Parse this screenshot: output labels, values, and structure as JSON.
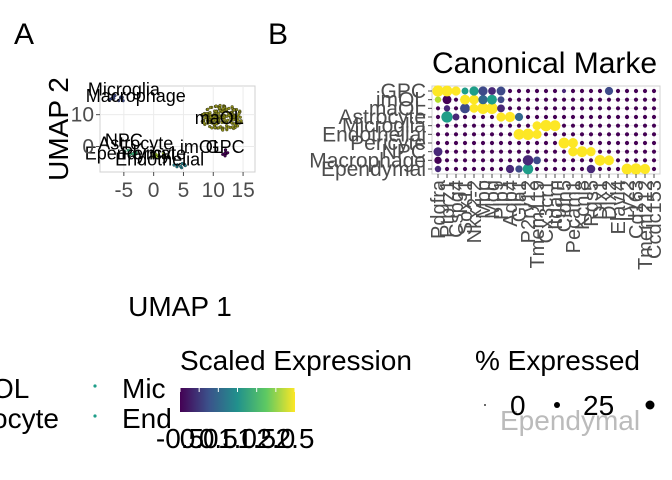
{
  "panel_labels": {
    "a": "A",
    "b": "B"
  },
  "colors": {
    "viridis": [
      "#440154",
      "#482878",
      "#3e4a89",
      "#31688e",
      "#26828e",
      "#1f9e89",
      "#35b779",
      "#6dcd59",
      "#b4de2c",
      "#fde725"
    ],
    "umap_cluster_fill": "#8f8f1c",
    "axis_text": "#4d4d4d",
    "grid": "#ebebeb"
  },
  "chart_data": [
    {
      "type": "scatter",
      "panel": "A",
      "xlabel": "UMAP 1",
      "ylabel": "UMAP 2",
      "xlim": [
        -9,
        17
      ],
      "ylim": [
        -8,
        19
      ],
      "x_ticks": [
        -5,
        0,
        5,
        10,
        15
      ],
      "y_ticks": [
        0,
        10
      ],
      "x_tick_labels": [
        "-5",
        "0",
        "5",
        "10",
        "15"
      ],
      "y_tick_labels": [
        "0",
        "10"
      ],
      "cluster_labels": [
        {
          "text": "Microglia",
          "x": -5,
          "y": 16
        },
        {
          "text": "Macrophage",
          "x": -3,
          "y": 14
        },
        {
          "text": "maOL",
          "x": 11,
          "y": 7
        },
        {
          "text": "NPC",
          "x": -5,
          "y": 0
        },
        {
          "text": "Astrocyte",
          "x": -3,
          "y": -1
        },
        {
          "text": "imOL",
          "x": 8,
          "y": -2
        },
        {
          "text": "GPC",
          "x": 12,
          "y": -2
        },
        {
          "text": "Ependymal",
          "x": -4,
          "y": -4
        },
        {
          "text": "Pericyte",
          "x": 0,
          "y": -4
        },
        {
          "text": "Endothelial",
          "x": 1,
          "y": -6
        }
      ],
      "clusters": [
        {
          "cx": 11.5,
          "cy": 9,
          "rx": 3.5,
          "ry": 4,
          "n": 180
        },
        {
          "cx": -6,
          "cy": 15,
          "rx": 1.4,
          "ry": 1.2,
          "n": 14
        },
        {
          "cx": 4.5,
          "cy": -6,
          "rx": 1.2,
          "ry": 0.8,
          "n": 10
        },
        {
          "cx": -4,
          "cy": -2,
          "rx": 1.2,
          "ry": 1.4,
          "n": 10
        },
        {
          "cx": 1,
          "cy": -3,
          "rx": 1.5,
          "ry": 1,
          "n": 10
        },
        {
          "cx": 12,
          "cy": -2,
          "rx": 1,
          "ry": 1,
          "n": 8
        }
      ]
    },
    {
      "type": "dot",
      "panel": "B",
      "title": "Canonical Marke",
      "rows": [
        "Ependymal",
        "Macrophage",
        "NPC",
        "Pericyte",
        "Endothelial",
        "Microglia",
        "Astrocyte",
        "maOL",
        "imOL",
        "GPC"
      ],
      "row_labels_visible": [
        "GPC",
        "imOL",
        "maOL",
        "Astrocyte",
        "Endothelial",
        "Microglia",
        "Pericyte",
        "NPC",
        "Macrophage",
        "Ependymal"
      ],
      "genes": [
        "Pdgfra",
        "Ptprz1",
        "Cspg4",
        "Sox11",
        "Nkx2-2",
        "Mbp",
        "Mog",
        "Plp1",
        "Aqp4",
        "Gja1",
        "P2ry12",
        "Tmem119",
        "Cx3cr1",
        "Itgam",
        "Cldn5",
        "Pecam1",
        "Kcnj8",
        "Rgs5",
        "Dlx1",
        "Dlx2",
        "Elavl4",
        "Lyz2",
        "Cd163",
        "Tmem212",
        "Ccdc153"
      ],
      "x_tick_labels": [
        "Pdgfra",
        "Ptprz1",
        "Cspg4",
        "Sox11",
        "Nkx2-2",
        "Mbp",
        "Mog",
        "Plp1",
        "Aqp4",
        "Gja1",
        "P2ry12",
        "Tmem119",
        "Cx3cr1",
        "Itgam",
        "Cldn5",
        "Pecam1",
        "Kcnj8",
        "Rgs5",
        "Dlx1",
        "Dlx2",
        "Elavl4",
        "Lyz2",
        "Cd163",
        "Tmem212",
        "Ccdc153"
      ],
      "dots": [
        {
          "row": "GPC",
          "gene": 0,
          "pct": 95,
          "scaled": 2.5
        },
        {
          "row": "GPC",
          "gene": 1,
          "pct": 85,
          "scaled": 2.5
        },
        {
          "row": "GPC",
          "gene": 2,
          "pct": 60,
          "scaled": 2.5
        },
        {
          "row": "GPC",
          "gene": 3,
          "pct": 30,
          "scaled": 1.2
        },
        {
          "row": "GPC",
          "gene": 4,
          "pct": 60,
          "scaled": 1.0
        },
        {
          "row": "GPC",
          "gene": 5,
          "pct": 60,
          "scaled": 0.0
        },
        {
          "row": "GPC",
          "gene": 6,
          "pct": 40,
          "scaled": -0.2
        },
        {
          "row": "GPC",
          "gene": 7,
          "pct": 55,
          "scaled": 0.2
        },
        {
          "row": "GPC",
          "gene": 14,
          "pct": 8,
          "scaled": -0.3
        },
        {
          "row": "GPC",
          "gene": 19,
          "pct": 45,
          "scaled": 0.3
        },
        {
          "row": "imOL",
          "gene": 0,
          "pct": 25,
          "scaled": 2.2
        },
        {
          "row": "imOL",
          "gene": 1,
          "pct": 55,
          "scaled": -0.4
        },
        {
          "row": "imOL",
          "gene": 3,
          "pct": 70,
          "scaled": 2.5
        },
        {
          "row": "imOL",
          "gene": 4,
          "pct": 65,
          "scaled": 2.5
        },
        {
          "row": "imOL",
          "gene": 5,
          "pct": 60,
          "scaled": 0.4
        },
        {
          "row": "imOL",
          "gene": 6,
          "pct": 70,
          "scaled": 1.2
        },
        {
          "row": "imOL",
          "gene": 7,
          "pct": 30,
          "scaled": 0.1
        },
        {
          "row": "maOL",
          "gene": 1,
          "pct": 25,
          "scaled": -0.3
        },
        {
          "row": "maOL",
          "gene": 3,
          "pct": 70,
          "scaled": 0.2
        },
        {
          "row": "maOL",
          "gene": 4,
          "pct": 55,
          "scaled": 2.5
        },
        {
          "row": "maOL",
          "gene": 5,
          "pct": 95,
          "scaled": 2.5
        },
        {
          "row": "maOL",
          "gene": 6,
          "pct": 95,
          "scaled": 2.5
        },
        {
          "row": "maOL",
          "gene": 7,
          "pct": 40,
          "scaled": -0.2
        },
        {
          "row": "Astrocyte",
          "gene": 1,
          "pct": 95,
          "scaled": 1.1
        },
        {
          "row": "Astrocyte",
          "gene": 2,
          "pct": 30,
          "scaled": -0.3
        },
        {
          "row": "Astrocyte",
          "gene": 7,
          "pct": 60,
          "scaled": 2.5
        },
        {
          "row": "Astrocyte",
          "gene": 8,
          "pct": 75,
          "scaled": 2.5
        },
        {
          "row": "Astrocyte",
          "gene": 9,
          "pct": 45,
          "scaled": 0.5
        },
        {
          "row": "Endothelial",
          "gene": 9,
          "pct": 85,
          "scaled": 2.5
        },
        {
          "row": "Endothelial",
          "gene": 10,
          "pct": 95,
          "scaled": 2.5
        },
        {
          "row": "Endothelial",
          "gene": 11,
          "pct": 60,
          "scaled": 2.5
        },
        {
          "row": "Microglia",
          "gene": 11,
          "pct": 55,
          "scaled": 2.5
        },
        {
          "row": "Microglia",
          "gene": 12,
          "pct": 95,
          "scaled": 2.5
        },
        {
          "row": "Microglia",
          "gene": 13,
          "pct": 85,
          "scaled": 2.5
        },
        {
          "row": "Pericyte",
          "gene": 14,
          "pct": 85,
          "scaled": 2.5
        },
        {
          "row": "Pericyte",
          "gene": 15,
          "pct": 70,
          "scaled": 2.5
        },
        {
          "row": "NPC",
          "gene": 0,
          "pct": 55,
          "scaled": -0.3
        },
        {
          "row": "NPC",
          "gene": 15,
          "pct": 65,
          "scaled": 2.5
        },
        {
          "row": "NPC",
          "gene": 16,
          "pct": 85,
          "scaled": 2.5
        },
        {
          "row": "NPC",
          "gene": 17,
          "pct": 60,
          "scaled": 2.5
        },
        {
          "row": "Macrophage",
          "gene": 0,
          "pct": 35,
          "scaled": -0.4
        },
        {
          "row": "Macrophage",
          "gene": 10,
          "pct": 80,
          "scaled": -0.1
        },
        {
          "row": "Macrophage",
          "gene": 11,
          "pct": 40,
          "scaled": 0.3
        },
        {
          "row": "Macrophage",
          "gene": 18,
          "pct": 85,
          "scaled": 2.5
        },
        {
          "row": "Macrophage",
          "gene": 19,
          "pct": 70,
          "scaled": 2.5
        },
        {
          "row": "Ependymal",
          "gene": 0,
          "pct": 25,
          "scaled": -0.3
        },
        {
          "row": "Ependymal",
          "gene": 8,
          "pct": 45,
          "scaled": -0.2
        },
        {
          "row": "Ependymal",
          "gene": 9,
          "pct": 35,
          "scaled": 0.1
        },
        {
          "row": "Ependymal",
          "gene": 10,
          "pct": 80,
          "scaled": 1.3
        },
        {
          "row": "Ependymal",
          "gene": 17,
          "pct": 50,
          "scaled": -0.1
        },
        {
          "row": "Ependymal",
          "gene": 21,
          "pct": 85,
          "scaled": 2.5
        },
        {
          "row": "Ependymal",
          "gene": 22,
          "pct": 95,
          "scaled": 2.5
        },
        {
          "row": "Ependymal",
          "gene": 23,
          "pct": 75,
          "scaled": 2.5
        }
      ],
      "background_pct": 8,
      "color_scale": {
        "name": "Scaled Expression",
        "min": -0.5,
        "max": 2.5,
        "tick_labels": [
          "-0.5",
          "0.0",
          "0.5",
          "1.0",
          "1.5",
          "2.0",
          "2.5"
        ]
      },
      "size_scale": {
        "name": "% Expressed",
        "tick_labels": [
          "0",
          "25"
        ]
      }
    }
  ],
  "legend_umap": {
    "labels": [
      "OL",
      "ocyte",
      "Mic",
      "End"
    ]
  },
  "legend_color": {
    "title": "Scaled Expression"
  },
  "legend_size": {
    "title": "% Expressed",
    "labels": [
      "0",
      "25"
    ],
    "overflow_text": "Ependymal"
  }
}
